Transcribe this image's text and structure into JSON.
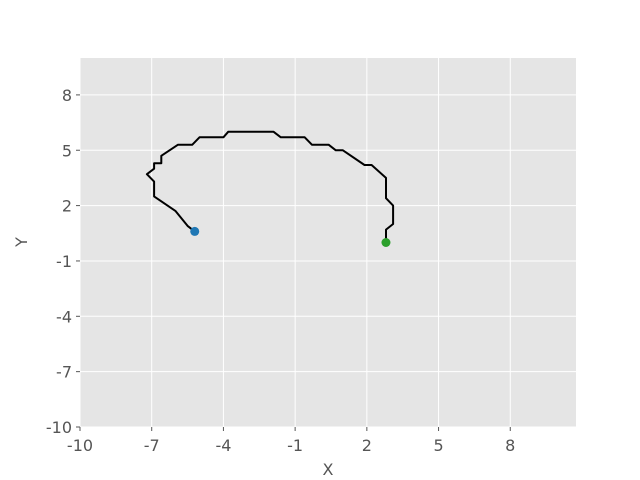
{
  "chart_data": {
    "type": "line",
    "title": "",
    "xlabel": "X",
    "ylabel": "Y",
    "xlim": [
      -10,
      10.75
    ],
    "ylim": [
      -10,
      10
    ],
    "xticks": [
      -10,
      -7,
      -4,
      -1,
      2,
      5,
      8
    ],
    "xtick_labels": [
      "-10",
      "-7",
      "-4",
      "-1",
      "2",
      "5",
      "8"
    ],
    "yticks": [
      -10,
      -7,
      -4,
      -1,
      2,
      5,
      8
    ],
    "ytick_labels": [
      "-10",
      "-7",
      "-4",
      "-1",
      "2",
      "5",
      "8"
    ],
    "grid": true,
    "background": "#e5e5e5",
    "grid_color": "#ffffff",
    "series": [
      {
        "values_x": [
          -5.2,
          -5.5,
          -6.0,
          -6.9,
          -6.9,
          -7.2,
          -6.9,
          -6.9,
          -6.6,
          -6.6,
          -5.9,
          -5.3,
          -5.0,
          -4.0,
          -3.8,
          -1.9,
          -1.6,
          -0.6,
          -0.3,
          0.4,
          0.7,
          1.0,
          1.9,
          2.2,
          2.8,
          2.8,
          3.1,
          3.1,
          2.8,
          2.8
        ],
        "values_y": [
          0.6,
          0.9,
          1.7,
          2.5,
          3.3,
          3.7,
          4.0,
          4.3,
          4.3,
          4.7,
          5.3,
          5.3,
          5.7,
          5.7,
          6.0,
          6.0,
          5.7,
          5.7,
          5.3,
          5.3,
          5.0,
          5.0,
          4.2,
          4.2,
          3.5,
          2.4,
          2.0,
          1.0,
          0.7,
          0.0
        ],
        "color": "#000000"
      }
    ],
    "markers": [
      {
        "x": -5.2,
        "y": 0.6,
        "color": "#1f77b4"
      },
      {
        "x": 2.8,
        "y": 0.0,
        "color": "#2ca02c"
      }
    ]
  }
}
